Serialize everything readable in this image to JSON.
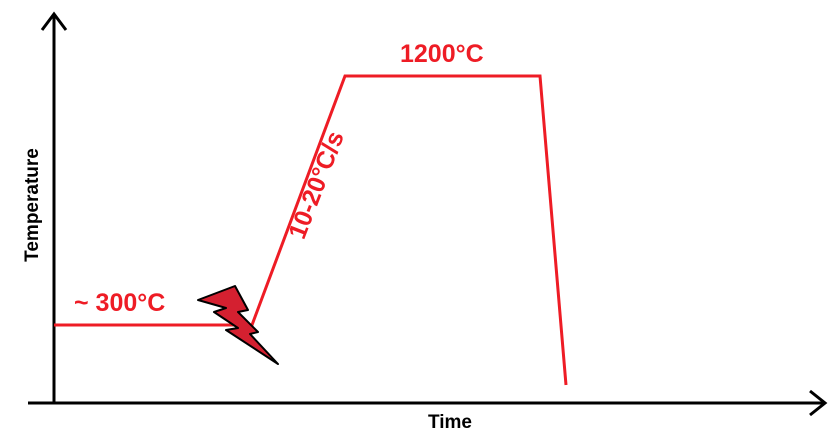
{
  "axes": {
    "x_label": "Time",
    "y_label": "Temperature"
  },
  "annotations": {
    "start_temp": "~ 300°C",
    "peak_temp": "1200°C",
    "heating_rate": "10-20°C/s"
  },
  "colors": {
    "profile": "#ee1c25",
    "axis": "#000000",
    "lightning_fill": "#d42030",
    "lightning_stroke": "#000000"
  },
  "icons": {
    "spark": "lightning-bolt-icon"
  }
}
